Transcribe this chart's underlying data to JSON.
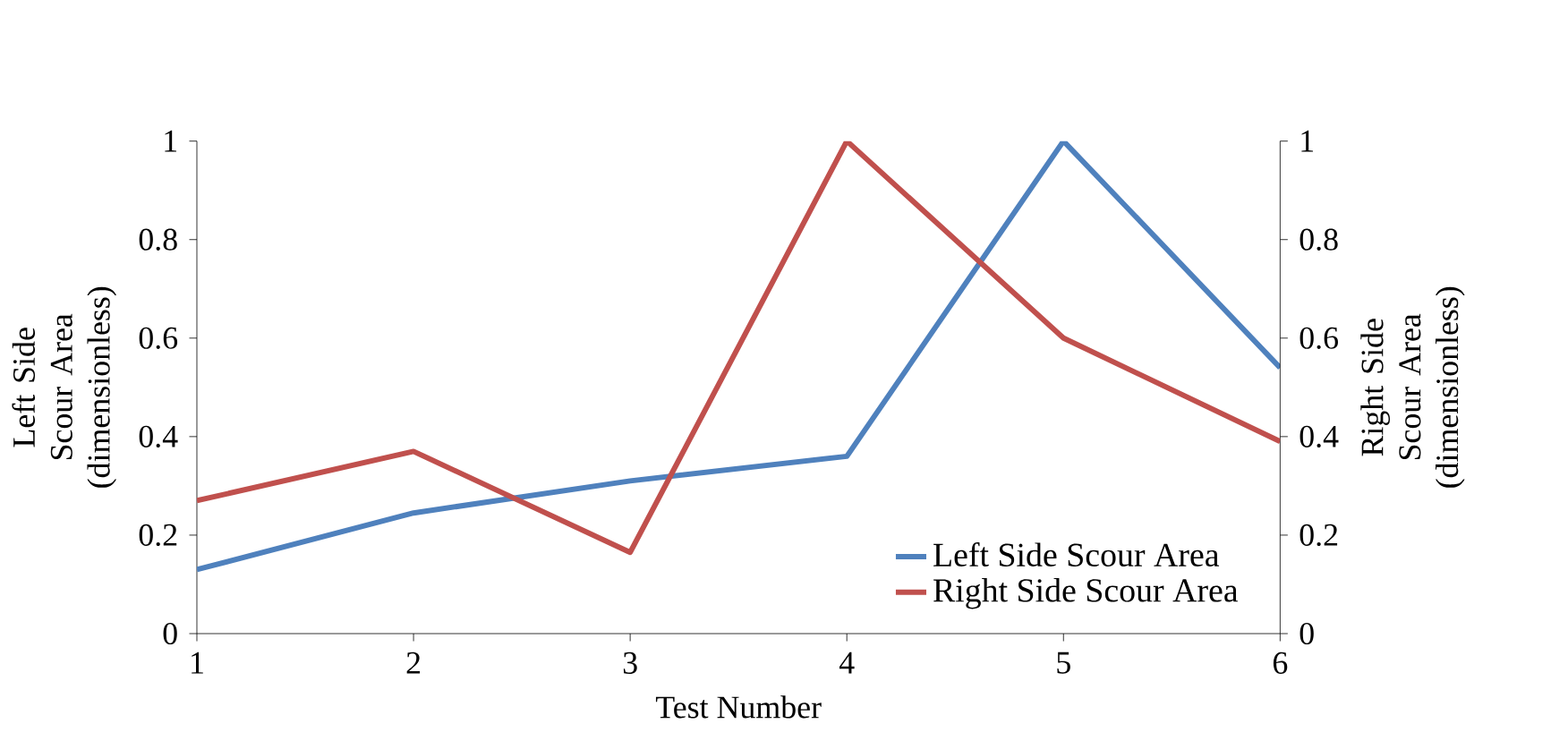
{
  "chart_data": {
    "type": "line",
    "xlabel": "Test Number",
    "ylabel": "Left Side Scour Area (dimensionless)",
    "y2label": "Right Side Scour Area (dimensionless)",
    "x": [
      1,
      2,
      3,
      4,
      5,
      6
    ],
    "series": [
      {
        "name": "Left Side Scour Area",
        "color": "#4f81bd",
        "values": [
          0.13,
          0.245,
          0.31,
          0.36,
          1.0,
          0.54
        ]
      },
      {
        "name": "Right Side Scour Area",
        "color": "#c0504d",
        "axis": "y2",
        "values": [
          0.27,
          0.37,
          0.165,
          1.0,
          0.6,
          0.39
        ]
      }
    ],
    "xlim": [
      1,
      6
    ],
    "xticks": [
      1,
      2,
      3,
      4,
      5,
      6
    ],
    "ylim": [
      0,
      1
    ],
    "yticks": [
      0,
      0.2,
      0.4,
      0.6,
      0.8,
      1
    ],
    "y2lim": [
      0,
      1
    ],
    "y2ticks": [
      0,
      0.2,
      0.4,
      0.6,
      0.8,
      1
    ],
    "grid": false,
    "legend": "bottom right",
    "marker": "none",
    "line_style": "solid"
  }
}
